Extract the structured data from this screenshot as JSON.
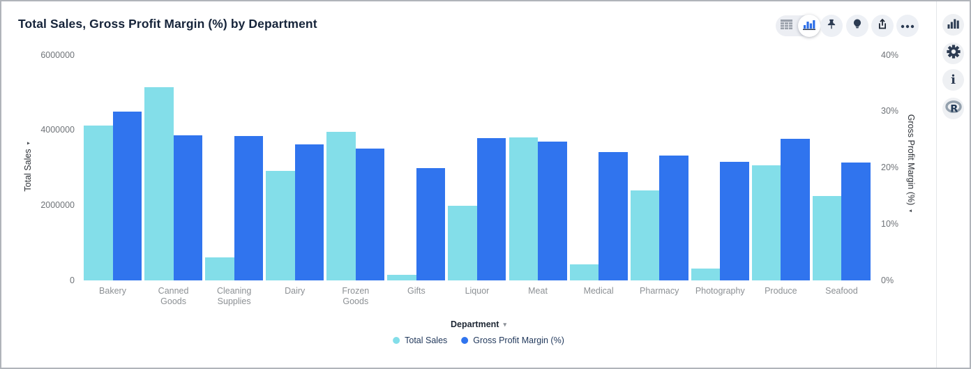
{
  "page": {
    "title": "Total Sales, Gross Profit Margin (%) by Department"
  },
  "toolbar": {
    "icons": [
      "table-view-icon",
      "bar-chart-view-icon",
      "pin-icon",
      "lightbulb-icon",
      "export-icon",
      "more-icon"
    ],
    "more_glyph": "•••"
  },
  "sidebar": {
    "icons": [
      "bar-chart-icon",
      "gear-icon",
      "info-icon",
      "r-logo-icon"
    ],
    "info_glyph": "i"
  },
  "colors": {
    "total_sales": "#83DEE9",
    "gross_profit_margin": "#3074EE",
    "title_text": "#16243A",
    "icon_navy": "#2C3B52"
  },
  "chart_data": {
    "type": "bar",
    "title": "Total Sales, Gross Profit Margin (%) by Department",
    "categories": [
      "Bakery",
      "Canned Goods",
      "Cleaning Supplies",
      "Dairy",
      "Frozen Goods",
      "Gifts",
      "Liquor",
      "Meat",
      "Medical",
      "Pharmacy",
      "Photography",
      "Produce",
      "Seafood"
    ],
    "series": [
      {
        "name": "Total Sales",
        "axis": "left",
        "color": "#83DEE9",
        "values": [
          4130000,
          5140000,
          620000,
          2920000,
          3960000,
          150000,
          1980000,
          3800000,
          430000,
          2400000,
          310000,
          3060000,
          2250000
        ]
      },
      {
        "name": "Gross Profit Margin (%)",
        "axis": "right",
        "color": "#3074EE",
        "values": [
          30.0,
          25.8,
          25.7,
          24.1,
          23.4,
          20.0,
          25.3,
          24.6,
          22.8,
          22.2,
          21.1,
          25.2,
          20.9
        ]
      }
    ],
    "left_axis": {
      "label": "Total Sales",
      "min": 0,
      "max": 6000000,
      "ticks": [
        6000000,
        4000000,
        2000000,
        0
      ],
      "tick_labels": [
        "6000000",
        "4000000",
        "2000000",
        "0"
      ]
    },
    "right_axis": {
      "label": "Gross Profit Margin (%)",
      "min": 0,
      "max": 40,
      "ticks": [
        40,
        30,
        20,
        10,
        0
      ],
      "tick_labels": [
        "40%",
        "30%",
        "20%",
        "10%",
        "0%"
      ]
    },
    "x_axis": {
      "label": "Department"
    },
    "legend": {
      "position": "bottom",
      "entries": [
        "Total Sales",
        "Gross Profit Margin (%)"
      ]
    },
    "grid": false,
    "arrow_glyph": "▾",
    "caret_glyph": "▾"
  }
}
